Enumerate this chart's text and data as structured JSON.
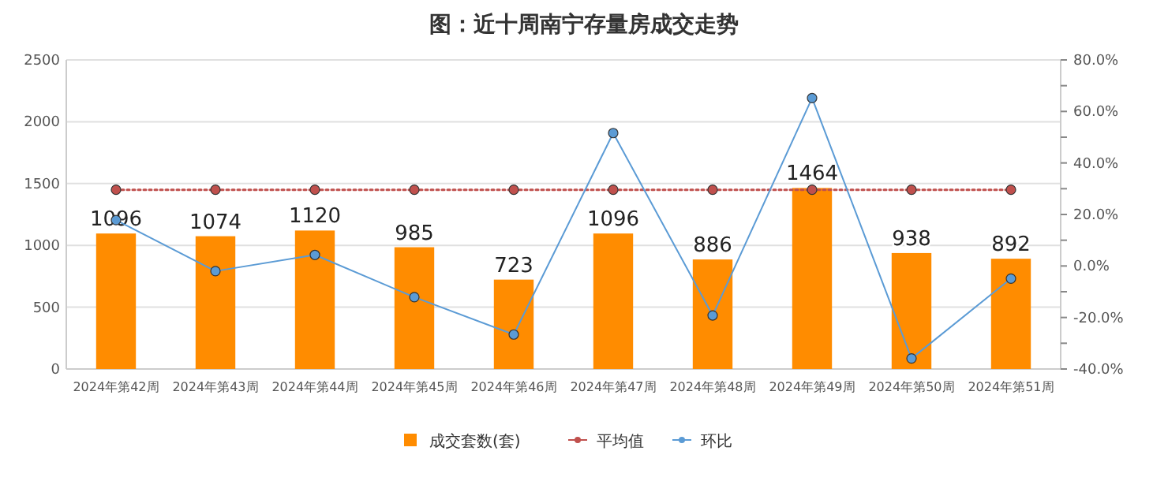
{
  "chart_data": {
    "type": "bar",
    "title": "图：近十周南宁存量房成交走势",
    "categories": [
      "2024年第42周",
      "2024年第43周",
      "2024年第44周",
      "2024年第45周",
      "2024年第46周",
      "2024年第47周",
      "2024年第48周",
      "2024年第49周",
      "2024年第50周",
      "2024年第51周"
    ],
    "series": [
      {
        "name": "成交套数(套)",
        "color": "#ff8c00",
        "values": [
          1096,
          1074,
          1120,
          985,
          723,
          1096,
          886,
          1464,
          938,
          892
        ],
        "value_labels": [
          "1096",
          "1074",
          "1120",
          "985",
          "723",
          "1096",
          "886",
          "1464",
          "938",
          "892"
        ]
      },
      {
        "name": "平均值",
        "type": "line",
        "axis": "y2",
        "color": "#c0504d",
        "marker": "circle",
        "line_style": "dotted",
        "values": [
          29.6,
          29.6,
          29.6,
          29.6,
          29.6,
          29.6,
          29.6,
          29.6,
          29.6,
          29.6
        ]
      },
      {
        "name": "环比",
        "type": "line",
        "axis": "y2",
        "color": "#5b9bd5",
        "marker": "circle",
        "line_style": "solid",
        "values": [
          17.8,
          -2.0,
          4.3,
          -12.1,
          -26.6,
          51.6,
          -19.2,
          65.2,
          -35.9,
          -4.9
        ]
      }
    ],
    "ylim": [
      0,
      2500
    ],
    "yticks": [
      0,
      500,
      1000,
      1500,
      2000,
      2500
    ],
    "y2lim": [
      -40,
      80
    ],
    "y2ticks": [
      {
        "value": -40,
        "label": "-40.0%"
      },
      {
        "value": -30,
        "label": null
      },
      {
        "value": -20,
        "label": "-20.0%"
      },
      {
        "value": -10,
        "label": null
      },
      {
        "value": 0,
        "label": "0.0%"
      },
      {
        "value": 10,
        "label": null
      },
      {
        "value": 20,
        "label": "20.0%"
      },
      {
        "value": 30,
        "label": null
      },
      {
        "value": 40,
        "label": "40.0%"
      },
      {
        "value": 50,
        "label": null
      },
      {
        "value": 60,
        "label": "60.0%"
      },
      {
        "value": 70,
        "label": null
      },
      {
        "value": 80,
        "label": "80.0%"
      }
    ],
    "grid": "y",
    "legend": "bottom"
  }
}
